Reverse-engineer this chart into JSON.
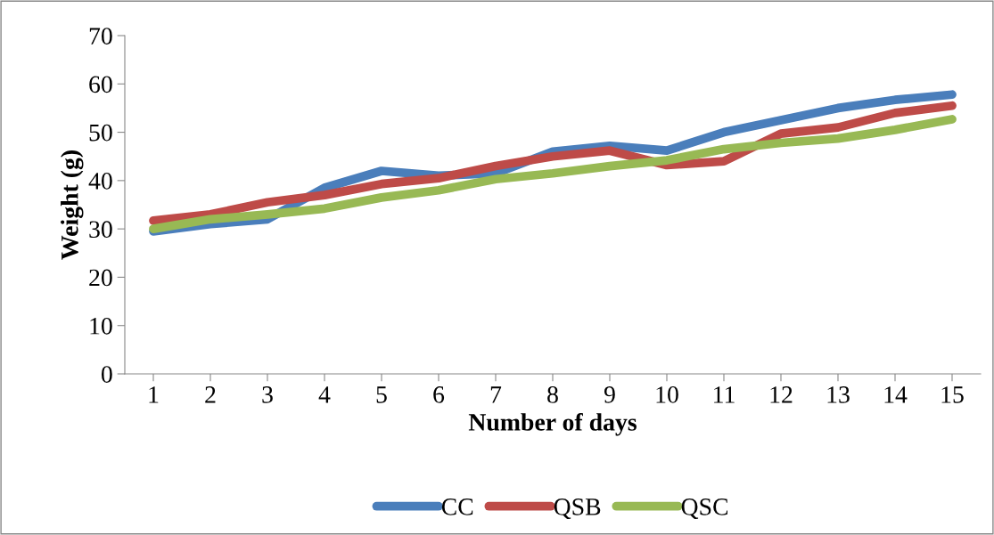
{
  "chart_data": {
    "type": "line",
    "xlabel": "Number of days",
    "ylabel": "Weight (g)",
    "categories": [
      "1",
      "2",
      "3",
      "4",
      "5",
      "6",
      "7",
      "8",
      "9",
      "10",
      "11",
      "12",
      "13",
      "14",
      "15"
    ],
    "series": [
      {
        "name": "CC",
        "color": "#4a7ebb",
        "values": [
          29.5,
          31,
          32,
          38.5,
          42,
          41,
          41.5,
          46,
          47.2,
          46.2,
          50,
          52.5,
          55,
          56.7,
          57.8
        ]
      },
      {
        "name": "QSB",
        "color": "#be4b48",
        "values": [
          31.7,
          33,
          35.5,
          37,
          39.3,
          40.5,
          43,
          45,
          46.2,
          43.2,
          44,
          49.7,
          51,
          54,
          55.5
        ]
      },
      {
        "name": "QSC",
        "color": "#98b954",
        "values": [
          30,
          32,
          33,
          34.2,
          36.5,
          38,
          40.3,
          41.5,
          43,
          44.2,
          46.5,
          47.8,
          48.7,
          50.5,
          52.7
        ]
      }
    ],
    "ylim": [
      0,
      70
    ],
    "yticks": [
      0,
      10,
      20,
      30,
      40,
      50,
      60,
      70
    ],
    "grid": false,
    "legend": "bottom",
    "marker": "none",
    "line_style": "solid"
  }
}
